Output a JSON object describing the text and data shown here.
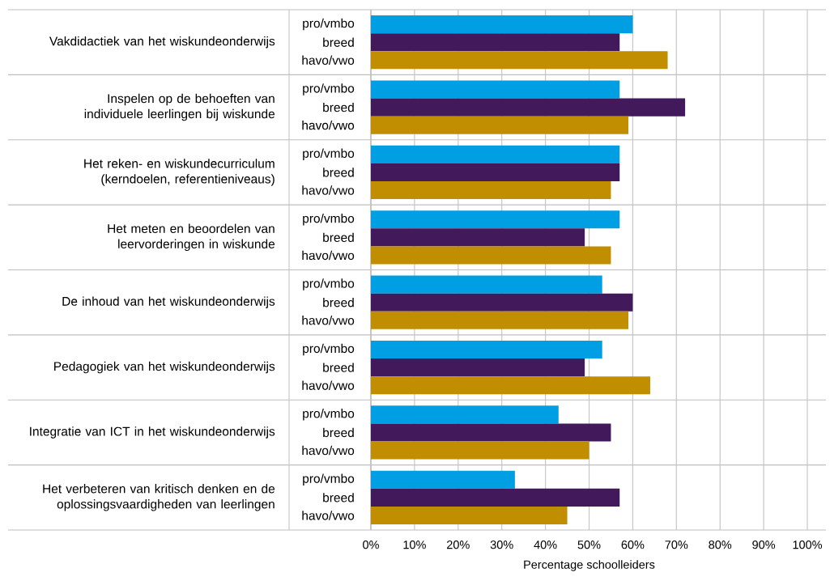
{
  "chart_data": {
    "type": "bar",
    "orientation": "horizontal",
    "xlabel": "Percentage schoolleiders",
    "categories": [
      "Vakdidactiek van het wiskundeonderwijs",
      "Inspelen op de behoeften van individuele leerlingen bij wiskunde",
      "Het reken- en wiskundecurriculum (kerndoelen, referentieniveaus)",
      "Het meten en beoordelen van leervorderingen in wiskunde",
      "De inhoud van het wiskundeonderwijs",
      "Pedagogiek van het wiskundeonderwijs",
      "Integratie van ICT in het wiskundeonderwijs",
      "Het verbeteren van kritisch denken en de oplossingsvaardigheden van leerlingen"
    ],
    "series": [
      {
        "name": "pro/vmbo",
        "color": "#009fe3",
        "values": [
          60,
          57,
          57,
          57,
          53,
          53,
          43,
          33
        ]
      },
      {
        "name": "breed",
        "color": "#42195a",
        "values": [
          57,
          72,
          57,
          49,
          60,
          49,
          55,
          57
        ]
      },
      {
        "name": "havo/vwo",
        "color": "#c08e00",
        "values": [
          68,
          59,
          55,
          55,
          59,
          64,
          50,
          45
        ]
      }
    ],
    "xlim": [
      0,
      100
    ],
    "xticks": [
      {
        "value": 0,
        "label": "0%"
      },
      {
        "value": 10,
        "label": "10%"
      },
      {
        "value": 20,
        "label": "20%"
      },
      {
        "value": 30,
        "label": "30%"
      },
      {
        "value": 40,
        "label": "40%"
      },
      {
        "value": 50,
        "label": "50%"
      },
      {
        "value": 60,
        "label": "60%"
      },
      {
        "value": 70,
        "label": "70%"
      },
      {
        "value": 80,
        "label": "80%"
      },
      {
        "value": 90,
        "label": "90%"
      },
      {
        "value": 100,
        "label": "100%"
      }
    ],
    "grid": "x"
  }
}
